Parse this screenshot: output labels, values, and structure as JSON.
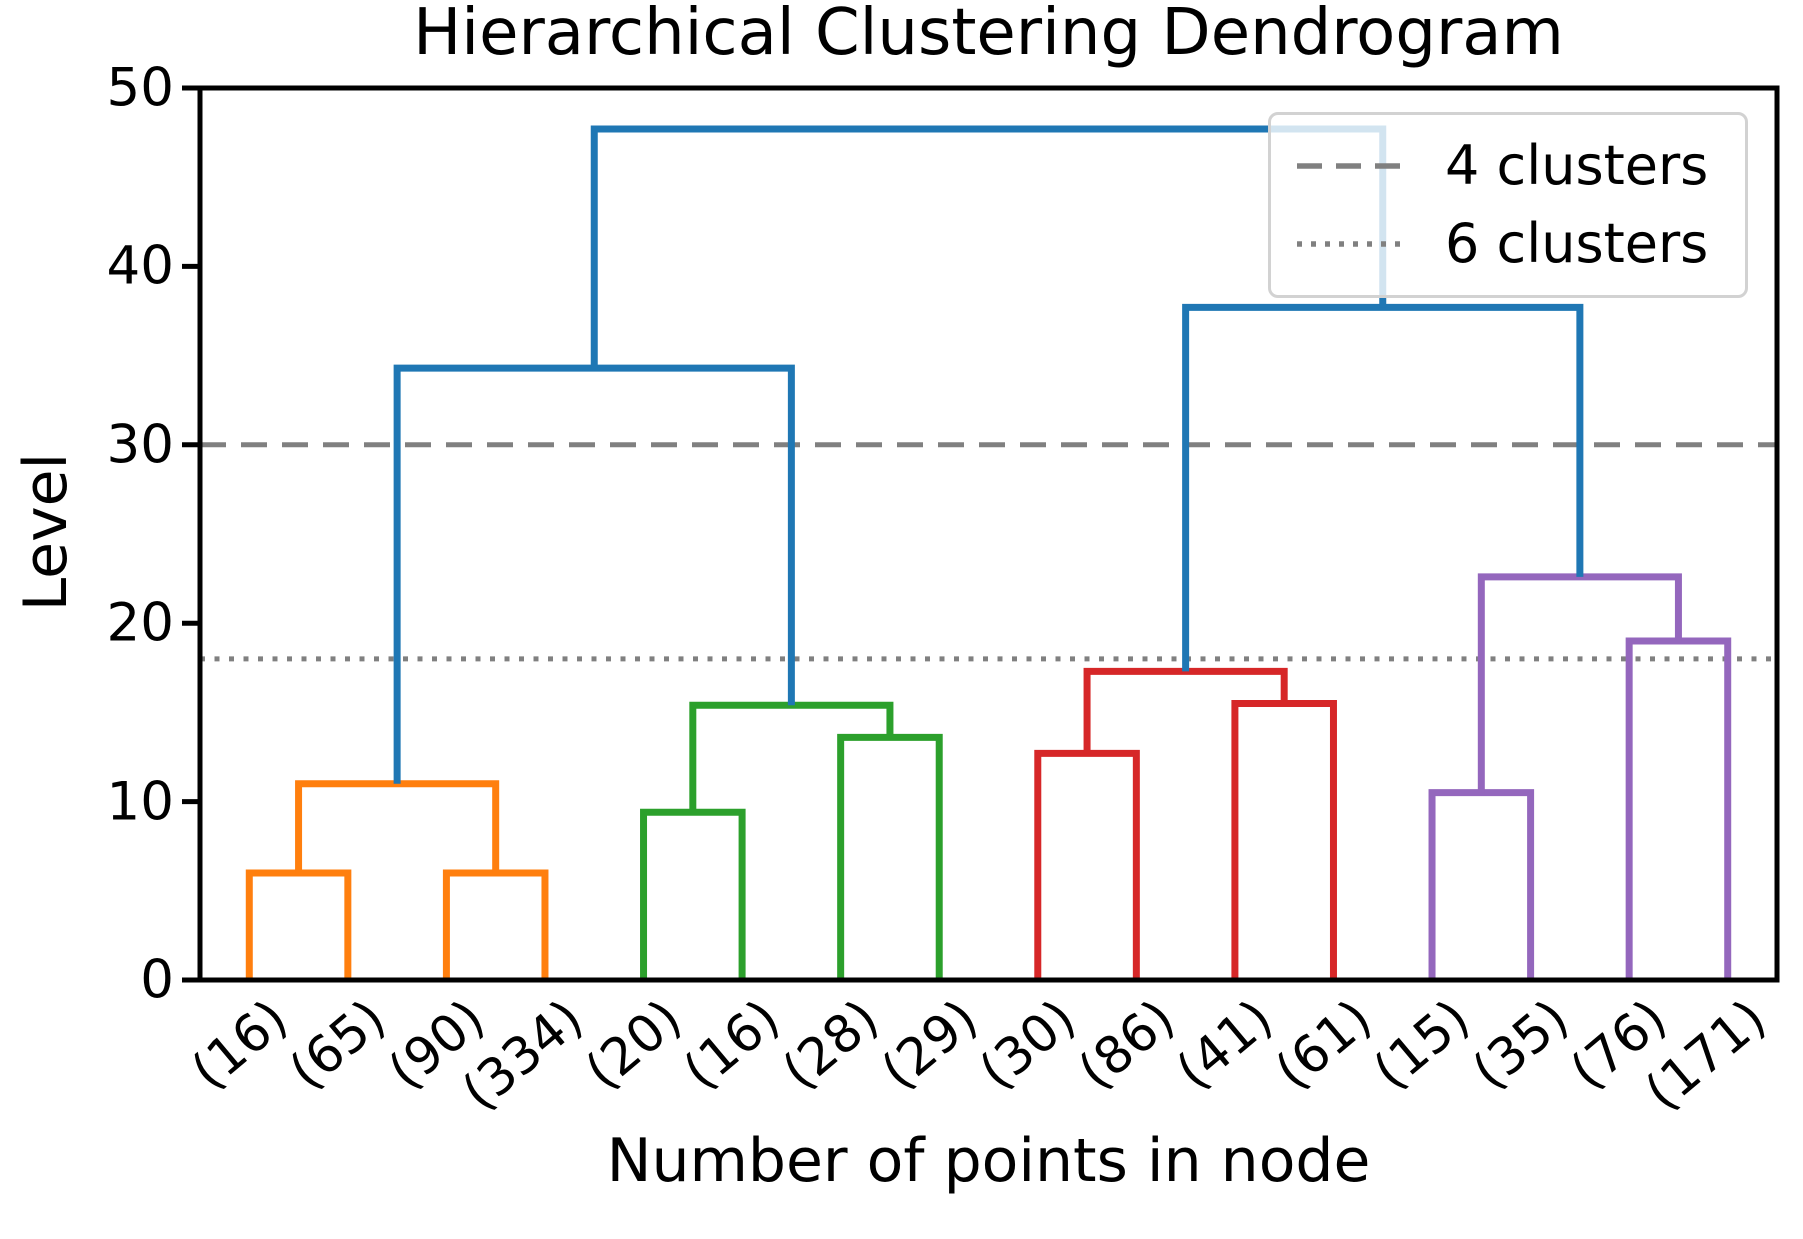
{
  "figure": {
    "title": "Hierarchical Clustering Dendrogram"
  },
  "axes": {
    "ylabel": "Level",
    "xlabel": "Number of points in node",
    "yticks": [
      0,
      10,
      20,
      30,
      40,
      50
    ],
    "ylim": [
      0,
      50
    ]
  },
  "legend": {
    "position": "upper right",
    "items": [
      {
        "style": "dashed",
        "label": "4 clusters"
      },
      {
        "style": "dotted",
        "label": "6 clusters"
      }
    ]
  },
  "chart_data": {
    "type": "dendrogram",
    "title": "Hierarchical Clustering Dendrogram",
    "xlabel": "Number of points in node",
    "ylabel": "Level",
    "ylim": [
      0,
      50
    ],
    "yticks": [
      0,
      10,
      20,
      30,
      40,
      50
    ],
    "grid": false,
    "leaf_labels": [
      "(16)",
      "(65)",
      "(90)",
      "(334)",
      "(20)",
      "(16)",
      "(28)",
      "(29)",
      "(30)",
      "(86)",
      "(41)",
      "(61)",
      "(15)",
      "(35)",
      "(76)",
      "(171)"
    ],
    "links": [
      {
        "id": "M0",
        "children": [
          "L0",
          "L1"
        ],
        "level": 6.0,
        "color_key": "orange"
      },
      {
        "id": "M1",
        "children": [
          "L2",
          "L3"
        ],
        "level": 6.0,
        "color_key": "orange"
      },
      {
        "id": "M2",
        "children": [
          "M0",
          "M1"
        ],
        "level": 11.0,
        "color_key": "orange"
      },
      {
        "id": "M3",
        "children": [
          "L4",
          "L5"
        ],
        "level": 9.4,
        "color_key": "green"
      },
      {
        "id": "M4",
        "children": [
          "L6",
          "L7"
        ],
        "level": 13.6,
        "color_key": "green"
      },
      {
        "id": "M5",
        "children": [
          "M3",
          "M4"
        ],
        "level": 15.4,
        "color_key": "green"
      },
      {
        "id": "M6",
        "children": [
          "L8",
          "L9"
        ],
        "level": 12.7,
        "color_key": "red"
      },
      {
        "id": "M7",
        "children": [
          "L10",
          "L11"
        ],
        "level": 15.5,
        "color_key": "red"
      },
      {
        "id": "M8",
        "children": [
          "M6",
          "M7"
        ],
        "level": 17.3,
        "color_key": "red"
      },
      {
        "id": "M9",
        "children": [
          "L12",
          "L13"
        ],
        "level": 10.5,
        "color_key": "purple"
      },
      {
        "id": "M10",
        "children": [
          "L14",
          "L15"
        ],
        "level": 19.0,
        "color_key": "purple"
      },
      {
        "id": "M11",
        "children": [
          "M9",
          "M10"
        ],
        "level": 22.6,
        "color_key": "purple"
      },
      {
        "id": "M12",
        "children": [
          "M2",
          "M5"
        ],
        "level": 34.3,
        "color_key": "blue"
      },
      {
        "id": "M13",
        "children": [
          "M8",
          "M11"
        ],
        "level": 37.7,
        "color_key": "blue"
      },
      {
        "id": "M14",
        "children": [
          "M12",
          "M13"
        ],
        "level": 47.7,
        "color_key": "blue"
      }
    ],
    "threshold_lines": [
      {
        "level": 30,
        "style": "dashed",
        "legend_label": "4 clusters"
      },
      {
        "level": 18,
        "style": "dotted",
        "legend_label": "6 clusters"
      }
    ],
    "palette": {
      "blue": "#1f77b4",
      "orange": "#ff7f0e",
      "green": "#2ca02c",
      "red": "#d62728",
      "purple": "#9467bd",
      "threshold_gray": "#808080",
      "spine_black": "#000000"
    }
  }
}
